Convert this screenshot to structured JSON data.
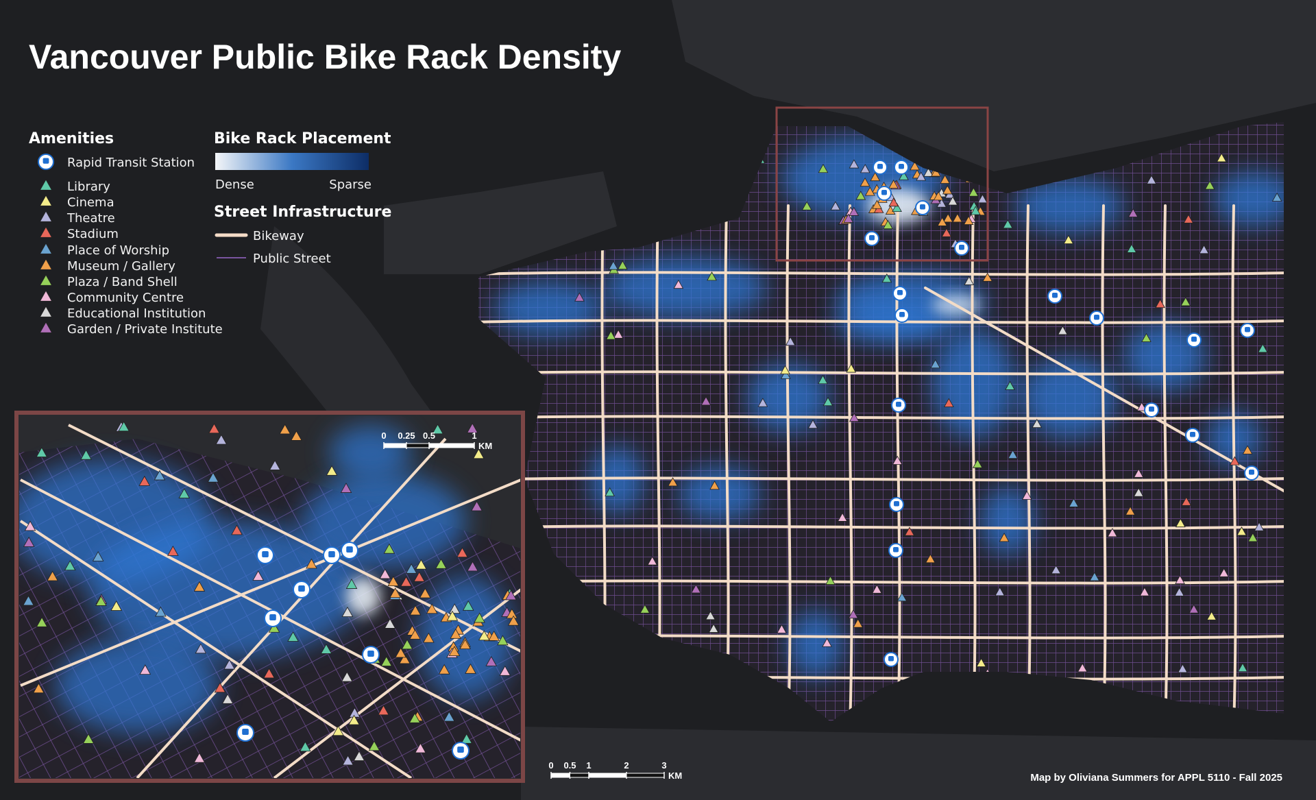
{
  "title": "Vancouver Public Bike Rack Density",
  "amenities": {
    "title": "Amenities",
    "items": [
      {
        "label": "Rapid Transit Station",
        "color": "#1f6fd1"
      },
      {
        "label": "Library",
        "color": "#5fc9a8"
      },
      {
        "label": "Cinema",
        "color": "#f3ec8a"
      },
      {
        "label": "Theatre",
        "color": "#b4b4dc"
      },
      {
        "label": "Stadium",
        "color": "#e8685a"
      },
      {
        "label": "Place of Worship",
        "color": "#6aa3d0"
      },
      {
        "label": "Museum / Gallery",
        "color": "#f0a04a"
      },
      {
        "label": "Plaza / Band Shell",
        "color": "#96d15a"
      },
      {
        "label": "Community Centre",
        "color": "#f0b8d8"
      },
      {
        "label": "Educational Institution",
        "color": "#d8d8d8"
      },
      {
        "label": "Garden / Private Institute",
        "color": "#b06fb8"
      }
    ]
  },
  "bike_rack_placement": {
    "title": "Bike Rack Placement",
    "dense": "Dense",
    "sparse": "Sparse"
  },
  "street_infrastructure": {
    "title": "Street Infrastructure",
    "bikeway": "Bikeway",
    "public_street": "Public Street"
  },
  "scale_bar": {
    "ticks": [
      0,
      0.5,
      1,
      2,
      3
    ],
    "unit": "KM"
  },
  "inset_scale_bar": {
    "ticks": [
      0,
      0.25,
      0.5,
      1
    ],
    "unit": "KM"
  },
  "credit": "Map by Oliviana Summers for APPL 5110 - Fall 2025"
}
